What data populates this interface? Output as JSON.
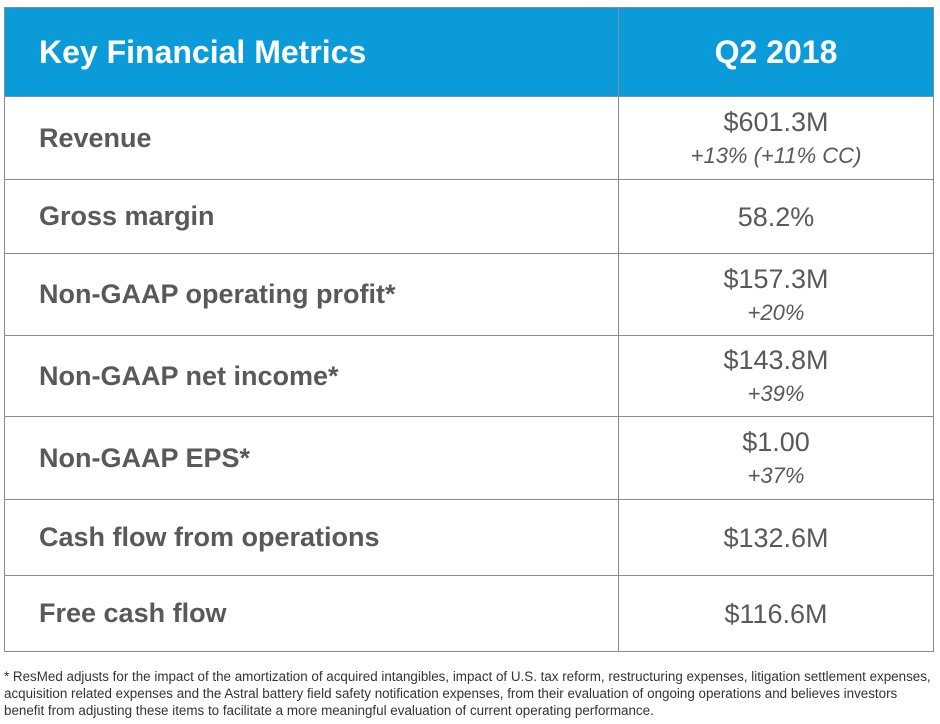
{
  "table": {
    "header": {
      "metric": "Key Financial Metrics",
      "period": "Q2 2018"
    },
    "rows": [
      {
        "label": "Revenue",
        "value": "$601.3M",
        "change": "+13% (+11% CC)"
      },
      {
        "label": "Gross margin",
        "value": "58.2%",
        "change": ""
      },
      {
        "label": "Non-GAAP operating profit*",
        "value": "$157.3M",
        "change": "+20%"
      },
      {
        "label": "Non-GAAP net income*",
        "value": "$143.8M",
        "change": "+39%"
      },
      {
        "label": "Non-GAAP EPS*",
        "value": "$1.00",
        "change": "+37%"
      },
      {
        "label": "Cash flow from operations",
        "value": "$132.6M",
        "change": ""
      },
      {
        "label": "Free cash flow",
        "value": "$116.6M",
        "change": ""
      }
    ]
  },
  "footnote": "* ResMed adjusts for the impact of the amortization of acquired intangibles, impact of U.S. tax reform, restructuring expenses, litigation settlement expenses, acquisition related expenses and the Astral battery field safety notification expenses, from their evaluation of ongoing operations and believes investors benefit from adjusting these items to facilitate a more meaningful evaluation of current operating performance.",
  "colors": {
    "header_bg": "#0a9bd8",
    "header_text": "#ffffff",
    "body_text": "#595959"
  }
}
